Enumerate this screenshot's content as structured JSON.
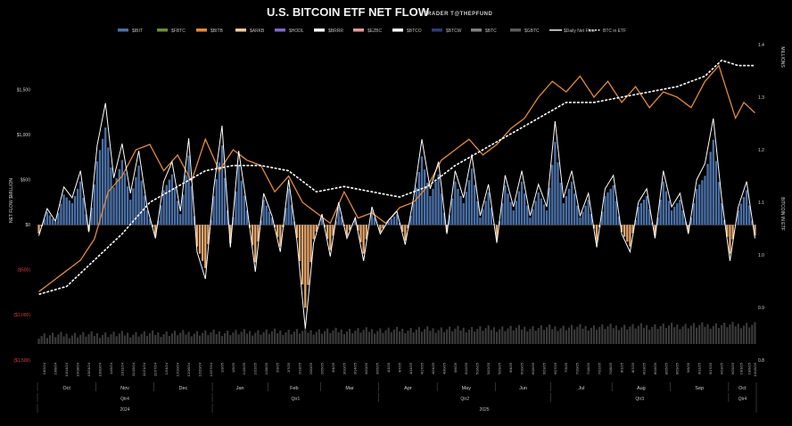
{
  "chart_data": {
    "type": "bar",
    "title": "U.S. BITCOIN ETF NET FLOW",
    "subtitle": "TRADER T@THEPFUND",
    "ylabel": "NET FLOW $MILLION",
    "y2label": "BITCOIN IN ETF",
    "y2unit": "MILLIONS",
    "ylim": [
      -1500,
      2000
    ],
    "y2lim": [
      0.8,
      1.4
    ],
    "grid": false,
    "legend_position": "top",
    "left_ticks": [
      {
        "value": 1500,
        "label": "$1,500"
      },
      {
        "value": 1000,
        "label": "$1,000"
      },
      {
        "value": 500,
        "label": "$500"
      },
      {
        "value": 0,
        "label": "$0"
      },
      {
        "value": -500,
        "label": "($500)"
      },
      {
        "value": -1000,
        "label": "($1,000)"
      },
      {
        "value": -1500,
        "label": "($1,500)"
      }
    ],
    "right_ticks": [
      "1.4",
      "1.3",
      "1.2",
      "1.1",
      "1.0",
      "0.9",
      "0.8"
    ],
    "legend": [
      {
        "label": "$IBIT",
        "color": "#4a6fa5",
        "kind": "bar"
      },
      {
        "label": "$FBTC",
        "color": "#6b8e3a",
        "kind": "bar"
      },
      {
        "label": "$BITB",
        "color": "#e08a3c",
        "kind": "bar"
      },
      {
        "label": "$ARKB",
        "color": "#f3c9a0",
        "kind": "bar"
      },
      {
        "label": "$HODL",
        "color": "#7b68c8",
        "kind": "bar"
      },
      {
        "label": "$BRRR",
        "color": "#ffffff",
        "kind": "bar"
      },
      {
        "label": "$EZBC",
        "color": "#e39a9a",
        "kind": "bar"
      },
      {
        "label": "$BTCO",
        "color": "#ffffff",
        "kind": "bar"
      },
      {
        "label": "$BTCW",
        "color": "#2e3a78",
        "kind": "bar"
      },
      {
        "label": "$BTC",
        "color": "#7f7f7f",
        "kind": "bar"
      },
      {
        "label": "$GBTC",
        "color": "#5a5a5a",
        "kind": "bar"
      },
      {
        "label": "$Daily Net Flow",
        "color": "#ffffff",
        "kind": "line"
      },
      {
        "label": "BTC in ETF",
        "color": "#ffffff",
        "kind": "dashed"
      }
    ],
    "series_colors": {
      "price_line": "#e08a3c",
      "daily_net_flow": "#ffffff",
      "btc_in_etf": "#ffffff",
      "positive_bars": "#4a6fa5",
      "negative_bars": "#e3a56b",
      "volume_bars": "#3a3a3a"
    },
    "daily_net_flow_keypoints": [
      {
        "x": 0,
        "y": -120
      },
      {
        "x": 3,
        "y": 180
      },
      {
        "x": 6,
        "y": 40
      },
      {
        "x": 9,
        "y": 420
      },
      {
        "x": 12,
        "y": 300
      },
      {
        "x": 15,
        "y": 600
      },
      {
        "x": 18,
        "y": -80
      },
      {
        "x": 21,
        "y": 880
      },
      {
        "x": 24,
        "y": 1350
      },
      {
        "x": 27,
        "y": 520
      },
      {
        "x": 30,
        "y": 900
      },
      {
        "x": 33,
        "y": 350
      },
      {
        "x": 36,
        "y": 820
      },
      {
        "x": 39,
        "y": 200
      },
      {
        "x": 42,
        "y": -150
      },
      {
        "x": 45,
        "y": 480
      },
      {
        "x": 48,
        "y": 700
      },
      {
        "x": 51,
        "y": 150
      },
      {
        "x": 54,
        "y": 960
      },
      {
        "x": 57,
        "y": -300
      },
      {
        "x": 60,
        "y": -600
      },
      {
        "x": 63,
        "y": 400
      },
      {
        "x": 66,
        "y": 1100
      },
      {
        "x": 69,
        "y": -250
      },
      {
        "x": 72,
        "y": 820
      },
      {
        "x": 75,
        "y": 200
      },
      {
        "x": 78,
        "y": -520
      },
      {
        "x": 81,
        "y": 350
      },
      {
        "x": 84,
        "y": 100
      },
      {
        "x": 87,
        "y": -300
      },
      {
        "x": 90,
        "y": 500
      },
      {
        "x": 93,
        "y": -180
      },
      {
        "x": 96,
        "y": -1150
      },
      {
        "x": 99,
        "y": -200
      },
      {
        "x": 102,
        "y": 120
      },
      {
        "x": 105,
        "y": -350
      },
      {
        "x": 108,
        "y": 250
      },
      {
        "x": 111,
        "y": -150
      },
      {
        "x": 114,
        "y": 80
      },
      {
        "x": 117,
        "y": -400
      },
      {
        "x": 120,
        "y": 200
      },
      {
        "x": 123,
        "y": -100
      },
      {
        "x": 126,
        "y": 50
      },
      {
        "x": 129,
        "y": 150
      },
      {
        "x": 132,
        "y": -220
      },
      {
        "x": 135,
        "y": 300
      },
      {
        "x": 138,
        "y": 950
      },
      {
        "x": 141,
        "y": 400
      },
      {
        "x": 144,
        "y": 700
      },
      {
        "x": 147,
        "y": -100
      },
      {
        "x": 150,
        "y": 600
      },
      {
        "x": 153,
        "y": 300
      },
      {
        "x": 156,
        "y": 780
      },
      {
        "x": 159,
        "y": 100
      },
      {
        "x": 162,
        "y": 450
      },
      {
        "x": 165,
        "y": -200
      },
      {
        "x": 168,
        "y": 550
      },
      {
        "x": 171,
        "y": 200
      },
      {
        "x": 174,
        "y": 600
      },
      {
        "x": 177,
        "y": 100
      },
      {
        "x": 180,
        "y": 450
      },
      {
        "x": 183,
        "y": 200
      },
      {
        "x": 186,
        "y": 1150
      },
      {
        "x": 189,
        "y": 300
      },
      {
        "x": 192,
        "y": 600
      },
      {
        "x": 195,
        "y": 100
      },
      {
        "x": 198,
        "y": 350
      },
      {
        "x": 201,
        "y": -250
      },
      {
        "x": 204,
        "y": 400
      },
      {
        "x": 207,
        "y": 550
      },
      {
        "x": 210,
        "y": -100
      },
      {
        "x": 213,
        "y": -300
      },
      {
        "x": 216,
        "y": 250
      },
      {
        "x": 219,
        "y": 400
      },
      {
        "x": 222,
        "y": -150
      },
      {
        "x": 225,
        "y": 600
      },
      {
        "x": 228,
        "y": 200
      },
      {
        "x": 231,
        "y": 350
      },
      {
        "x": 234,
        "y": -100
      },
      {
        "x": 237,
        "y": 500
      },
      {
        "x": 240,
        "y": 680
      },
      {
        "x": 243,
        "y": 1180
      },
      {
        "x": 246,
        "y": 300
      },
      {
        "x": 249,
        "y": -400
      },
      {
        "x": 252,
        "y": 200
      },
      {
        "x": 255,
        "y": 480
      },
      {
        "x": 258,
        "y": -150
      }
    ],
    "price_line_keypoints": [
      {
        "x": 0,
        "y": 0.93
      },
      {
        "x": 5,
        "y": 0.95
      },
      {
        "x": 10,
        "y": 0.97
      },
      {
        "x": 15,
        "y": 0.99
      },
      {
        "x": 20,
        "y": 1.03
      },
      {
        "x": 25,
        "y": 1.12
      },
      {
        "x": 30,
        "y": 1.15
      },
      {
        "x": 35,
        "y": 1.2
      },
      {
        "x": 40,
        "y": 1.21
      },
      {
        "x": 45,
        "y": 1.16
      },
      {
        "x": 50,
        "y": 1.19
      },
      {
        "x": 55,
        "y": 1.14
      },
      {
        "x": 60,
        "y": 1.22
      },
      {
        "x": 65,
        "y": 1.16
      },
      {
        "x": 70,
        "y": 1.2
      },
      {
        "x": 75,
        "y": 1.18
      },
      {
        "x": 80,
        "y": 1.17
      },
      {
        "x": 85,
        "y": 1.12
      },
      {
        "x": 90,
        "y": 1.15
      },
      {
        "x": 95,
        "y": 1.1
      },
      {
        "x": 100,
        "y": 1.08
      },
      {
        "x": 105,
        "y": 1.06
      },
      {
        "x": 110,
        "y": 1.12
      },
      {
        "x": 115,
        "y": 1.07
      },
      {
        "x": 120,
        "y": 1.08
      },
      {
        "x": 125,
        "y": 1.06
      },
      {
        "x": 130,
        "y": 1.09
      },
      {
        "x": 135,
        "y": 1.1
      },
      {
        "x": 140,
        "y": 1.13
      },
      {
        "x": 145,
        "y": 1.18
      },
      {
        "x": 150,
        "y": 1.2
      },
      {
        "x": 155,
        "y": 1.22
      },
      {
        "x": 160,
        "y": 1.19
      },
      {
        "x": 165,
        "y": 1.21
      },
      {
        "x": 170,
        "y": 1.24
      },
      {
        "x": 175,
        "y": 1.26
      },
      {
        "x": 180,
        "y": 1.3
      },
      {
        "x": 185,
        "y": 1.33
      },
      {
        "x": 190,
        "y": 1.31
      },
      {
        "x": 195,
        "y": 1.34
      },
      {
        "x": 200,
        "y": 1.3
      },
      {
        "x": 205,
        "y": 1.33
      },
      {
        "x": 210,
        "y": 1.29
      },
      {
        "x": 215,
        "y": 1.32
      },
      {
        "x": 220,
        "y": 1.28
      },
      {
        "x": 225,
        "y": 1.31
      },
      {
        "x": 230,
        "y": 1.3
      },
      {
        "x": 235,
        "y": 1.28
      },
      {
        "x": 240,
        "y": 1.33
      },
      {
        "x": 245,
        "y": 1.36
      },
      {
        "x": 248,
        "y": 1.31
      },
      {
        "x": 251,
        "y": 1.26
      },
      {
        "x": 254,
        "y": 1.29
      },
      {
        "x": 258,
        "y": 1.27
      }
    ],
    "btc_in_etf_keypoints": [
      {
        "x": 0,
        "y": 0.925
      },
      {
        "x": 10,
        "y": 0.94
      },
      {
        "x": 20,
        "y": 0.99
      },
      {
        "x": 30,
        "y": 1.04
      },
      {
        "x": 40,
        "y": 1.1
      },
      {
        "x": 50,
        "y": 1.13
      },
      {
        "x": 60,
        "y": 1.16
      },
      {
        "x": 70,
        "y": 1.17
      },
      {
        "x": 80,
        "y": 1.17
      },
      {
        "x": 90,
        "y": 1.16
      },
      {
        "x": 100,
        "y": 1.12
      },
      {
        "x": 110,
        "y": 1.13
      },
      {
        "x": 120,
        "y": 1.12
      },
      {
        "x": 130,
        "y": 1.11
      },
      {
        "x": 140,
        "y": 1.13
      },
      {
        "x": 150,
        "y": 1.17
      },
      {
        "x": 160,
        "y": 1.2
      },
      {
        "x": 170,
        "y": 1.23
      },
      {
        "x": 180,
        "y": 1.26
      },
      {
        "x": 190,
        "y": 1.29
      },
      {
        "x": 200,
        "y": 1.29
      },
      {
        "x": 210,
        "y": 1.3
      },
      {
        "x": 220,
        "y": 1.31
      },
      {
        "x": 230,
        "y": 1.32
      },
      {
        "x": 240,
        "y": 1.34
      },
      {
        "x": 246,
        "y": 1.37
      },
      {
        "x": 252,
        "y": 1.36
      },
      {
        "x": 258,
        "y": 1.36
      }
    ],
    "x_count": 259,
    "months": [
      {
        "label": "Oct",
        "start": 0,
        "end": 21
      },
      {
        "label": "Nov",
        "start": 21,
        "end": 42
      },
      {
        "label": "Dec",
        "start": 42,
        "end": 63
      },
      {
        "label": "Jan",
        "start": 63,
        "end": 83
      },
      {
        "label": "Feb",
        "start": 83,
        "end": 102
      },
      {
        "label": "Mar",
        "start": 102,
        "end": 123
      },
      {
        "label": "Apr",
        "start": 123,
        "end": 144
      },
      {
        "label": "May",
        "start": 144,
        "end": 165
      },
      {
        "label": "Jun",
        "start": 165,
        "end": 185
      },
      {
        "label": "Jul",
        "start": 185,
        "end": 207
      },
      {
        "label": "Aug",
        "start": 207,
        "end": 228
      },
      {
        "label": "Sep",
        "start": 228,
        "end": 249
      },
      {
        "label": "Oct",
        "start": 249,
        "end": 259
      }
    ],
    "quarters": [
      {
        "label": "Qtr4",
        "start": 0,
        "end": 63
      },
      {
        "label": "Qtr1",
        "start": 63,
        "end": 123
      },
      {
        "label": "Qtr2",
        "start": 123,
        "end": 185
      },
      {
        "label": "Qtr3",
        "start": 185,
        "end": 249
      },
      {
        "label": "Qtr4",
        "start": 249,
        "end": 259
      }
    ],
    "years": [
      {
        "label": "2024",
        "start": 0,
        "end": 63
      },
      {
        "label": "2025",
        "start": 63,
        "end": 259
      }
    ],
    "date_labels": [
      {
        "x": 2,
        "label": "10/2/24"
      },
      {
        "x": 6,
        "label": "10/8/24"
      },
      {
        "x": 10,
        "label": "10/14/24"
      },
      {
        "x": 14,
        "label": "10/18/24"
      },
      {
        "x": 18,
        "label": "10/24/24"
      },
      {
        "x": 22,
        "label": "10/30/24"
      },
      {
        "x": 26,
        "label": "11/5/24"
      },
      {
        "x": 30,
        "label": "11/11/24"
      },
      {
        "x": 34,
        "label": "11/15/24"
      },
      {
        "x": 38,
        "label": "11/21/24"
      },
      {
        "x": 42,
        "label": "11/27/24"
      },
      {
        "x": 46,
        "label": "12/4/24"
      },
      {
        "x": 50,
        "label": "12/10/24"
      },
      {
        "x": 54,
        "label": "12/16/24"
      },
      {
        "x": 58,
        "label": "12/20/24"
      },
      {
        "x": 62,
        "label": "12/27/24"
      },
      {
        "x": 66,
        "label": "1/3/25"
      },
      {
        "x": 70,
        "label": "1/9/25"
      },
      {
        "x": 74,
        "label": "1/15/25"
      },
      {
        "x": 78,
        "label": "1/22/25"
      },
      {
        "x": 82,
        "label": "1/28/25"
      },
      {
        "x": 86,
        "label": "2/3/25"
      },
      {
        "x": 90,
        "label": "2/7/25"
      },
      {
        "x": 94,
        "label": "2/13/25"
      },
      {
        "x": 98,
        "label": "2/20/25"
      },
      {
        "x": 102,
        "label": "2/26/25"
      },
      {
        "x": 106,
        "label": "3/4/25"
      },
      {
        "x": 110,
        "label": "3/10/25"
      },
      {
        "x": 114,
        "label": "3/14/25"
      },
      {
        "x": 118,
        "label": "3/20/25"
      },
      {
        "x": 122,
        "label": "3/26/25"
      },
      {
        "x": 126,
        "label": "4/1/25"
      },
      {
        "x": 130,
        "label": "4/7/25"
      },
      {
        "x": 134,
        "label": "4/11/25"
      },
      {
        "x": 138,
        "label": "4/17/25"
      },
      {
        "x": 142,
        "label": "4/24/25"
      },
      {
        "x": 146,
        "label": "4/30/25"
      },
      {
        "x": 150,
        "label": "5/6/25"
      },
      {
        "x": 154,
        "label": "5/12/25"
      },
      {
        "x": 158,
        "label": "5/16/25"
      },
      {
        "x": 162,
        "label": "5/22/25"
      },
      {
        "x": 166,
        "label": "5/29/25"
      },
      {
        "x": 170,
        "label": "6/4/25"
      },
      {
        "x": 174,
        "label": "6/10/25"
      },
      {
        "x": 178,
        "label": "6/16/25"
      },
      {
        "x": 182,
        "label": "6/23/25"
      },
      {
        "x": 186,
        "label": "6/27/25"
      },
      {
        "x": 190,
        "label": "7/3/25"
      },
      {
        "x": 194,
        "label": "7/10/25"
      },
      {
        "x": 198,
        "label": "7/16/25"
      },
      {
        "x": 202,
        "label": "7/22/25"
      },
      {
        "x": 206,
        "label": "7/28/25"
      },
      {
        "x": 210,
        "label": "8/1/25"
      },
      {
        "x": 214,
        "label": "8/7/25"
      },
      {
        "x": 218,
        "label": "8/13/25"
      },
      {
        "x": 222,
        "label": "8/19/25"
      },
      {
        "x": 226,
        "label": "8/25/25"
      },
      {
        "x": 230,
        "label": "8/29/25"
      },
      {
        "x": 234,
        "label": "9/5/25"
      },
      {
        "x": 238,
        "label": "9/11/25"
      },
      {
        "x": 242,
        "label": "9/17/25"
      },
      {
        "x": 246,
        "label": "9/23/25"
      },
      {
        "x": 250,
        "label": "9/29/25"
      },
      {
        "x": 253,
        "label": "10/3/25"
      },
      {
        "x": 256,
        "label": "10/9/25"
      },
      {
        "x": 258,
        "label": "10/15/25"
      }
    ]
  }
}
